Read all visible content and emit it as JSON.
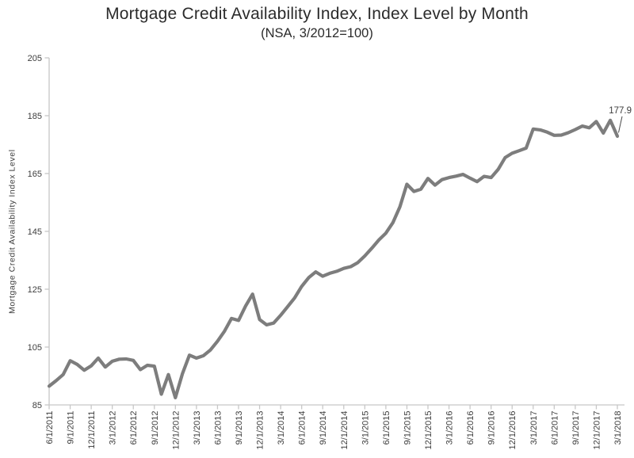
{
  "chart": {
    "title": "Mortgage Credit Availability Index, Index Level by Month",
    "subtitle": "(NSA, 3/2012=100)",
    "ylabel": "Mortgage Credit Availability Index Level"
  },
  "chart_data": {
    "type": "line",
    "title": "Mortgage Credit Availability Index, Index Level by Month",
    "subtitle": "(NSA, 3/2012=100)",
    "xlabel": "",
    "ylabel": "Mortgage Credit Availability Index Level",
    "ylim": [
      85,
      205
    ],
    "ytick_step": 20,
    "ytick_labels": [
      "85",
      "105",
      "125",
      "145",
      "165",
      "185",
      "205"
    ],
    "x_tick_every": 3,
    "x_tick_labels": [
      "6/1/2011",
      "9/1/2011",
      "12/1/2011",
      "3/1/2012",
      "6/1/2012",
      "9/1/2012",
      "12/1/2012",
      "3/1/2013",
      "6/1/2013",
      "9/1/2013",
      "12/1/2013",
      "3/1/2014",
      "6/1/2014",
      "9/1/2014",
      "12/1/2014",
      "3/1/2015",
      "6/1/2015",
      "9/1/2015",
      "12/1/2015",
      "3/1/2016",
      "6/1/2016",
      "9/1/2016",
      "12/1/2016",
      "3/1/2017",
      "6/1/2017",
      "9/1/2017",
      "12/1/2017",
      "3/1/2018"
    ],
    "grid": false,
    "legend": "none",
    "annotation": {
      "text": "177.9",
      "index": 81
    },
    "colors": {
      "line": "#7d7d7d",
      "axis": "#c7c7c7",
      "text": "#3d3d3d",
      "annotation_line": "#4a4a4a"
    },
    "categories": [
      "6/1/2011",
      "7/1/2011",
      "8/1/2011",
      "9/1/2011",
      "10/1/2011",
      "11/1/2011",
      "12/1/2011",
      "1/1/2012",
      "2/1/2012",
      "3/1/2012",
      "4/1/2012",
      "5/1/2012",
      "6/1/2012",
      "7/1/2012",
      "8/1/2012",
      "9/1/2012",
      "10/1/2012",
      "11/1/2012",
      "12/1/2012",
      "1/1/2013",
      "2/1/2013",
      "3/1/2013",
      "4/1/2013",
      "5/1/2013",
      "6/1/2013",
      "7/1/2013",
      "8/1/2013",
      "9/1/2013",
      "10/1/2013",
      "11/1/2013",
      "12/1/2013",
      "1/1/2014",
      "2/1/2014",
      "3/1/2014",
      "4/1/2014",
      "5/1/2014",
      "6/1/2014",
      "7/1/2014",
      "8/1/2014",
      "9/1/2014",
      "10/1/2014",
      "11/1/2014",
      "12/1/2014",
      "1/1/2015",
      "2/1/2015",
      "3/1/2015",
      "4/1/2015",
      "5/1/2015",
      "6/1/2015",
      "7/1/2015",
      "8/1/2015",
      "9/1/2015",
      "10/1/2015",
      "11/1/2015",
      "12/1/2015",
      "1/1/2016",
      "2/1/2016",
      "3/1/2016",
      "4/1/2016",
      "5/1/2016",
      "6/1/2016",
      "7/1/2016",
      "8/1/2016",
      "9/1/2016",
      "10/1/2016",
      "11/1/2016",
      "12/1/2016",
      "1/1/2017",
      "2/1/2017",
      "3/1/2017",
      "4/1/2017",
      "5/1/2017",
      "6/1/2017",
      "7/1/2017",
      "8/1/2017",
      "9/1/2017",
      "10/1/2017",
      "11/1/2017",
      "12/1/2017",
      "1/1/2018",
      "2/1/2018",
      "3/1/2018"
    ],
    "values": [
      91.5,
      93.4,
      95.5,
      100.3,
      99.0,
      97.0,
      98.5,
      101.2,
      98.1,
      100.1,
      100.8,
      100.9,
      100.4,
      97.2,
      98.7,
      98.4,
      88.7,
      95.5,
      87.5,
      95.8,
      102.2,
      101.2,
      102.0,
      104.0,
      107.0,
      110.5,
      114.9,
      114.2,
      119.2,
      123.3,
      114.5,
      112.7,
      113.3,
      116.0,
      119.0,
      122.0,
      126.0,
      129.0,
      131.0,
      129.5,
      130.5,
      131.2,
      132.2,
      132.8,
      134.2,
      136.5,
      139.2,
      142.0,
      144.4,
      148.0,
      153.5,
      161.3,
      158.8,
      159.6,
      163.3,
      161.0,
      162.9,
      163.6,
      164.1,
      164.7,
      163.4,
      162.2,
      164.0,
      163.6,
      166.4,
      170.5,
      172.0,
      172.9,
      173.8,
      180.4,
      180.1,
      179.3,
      178.2,
      178.3,
      179.1,
      180.2,
      181.4,
      180.8,
      183.0,
      179.0,
      183.4,
      177.9
    ]
  }
}
